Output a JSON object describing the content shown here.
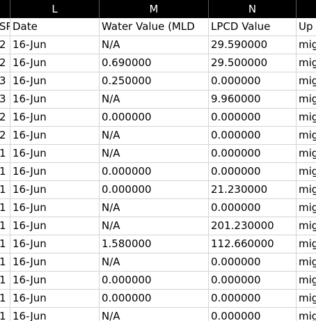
{
  "column_letters": [
    "",
    "L",
    "M",
    "N",
    ""
  ],
  "header_row": [
    "SR",
    "Date",
    "Water Value (MLD",
    "LPCD Value",
    "Up"
  ],
  "rows": [
    [
      "2",
      "16-Jun",
      "N/A",
      "29.590000",
      "mig"
    ],
    [
      "2",
      "16-Jun",
      "0.690000",
      "29.500000",
      "mig"
    ],
    [
      "3",
      "16-Jun",
      "0.250000",
      "0.000000",
      "mig"
    ],
    [
      "3",
      "16-Jun",
      "N/A",
      "9.960000",
      "mig"
    ],
    [
      "2",
      "16-Jun",
      "0.000000",
      "0.000000",
      "mig"
    ],
    [
      "2",
      "16-Jun",
      "N/A",
      "0.000000",
      "mig"
    ],
    [
      "1",
      "16-Jun",
      "N/A",
      "0.000000",
      "mig"
    ],
    [
      "1",
      "16-Jun",
      "0.000000",
      "0.000000",
      "mig"
    ],
    [
      "1",
      "16-Jun",
      "0.000000",
      "21.230000",
      "mig"
    ],
    [
      "1",
      "16-Jun",
      "N/A",
      "0.000000",
      "mig"
    ],
    [
      "1",
      "16-Jun",
      "N/A",
      "201.230000",
      "mig"
    ],
    [
      "1",
      "16-Jun",
      "1.580000",
      "112.660000",
      "mig"
    ],
    [
      "1",
      "16-Jun",
      "N/A",
      "0.000000",
      "mig"
    ],
    [
      "1",
      "16-Jun",
      "0.000000",
      "0.000000",
      "mig"
    ],
    [
      "1",
      "16-Jun",
      "0.000000",
      "0.000000",
      "mig"
    ],
    [
      "1",
      "16-Jun",
      "N/A",
      "0.000000",
      "mig"
    ]
  ]
}
